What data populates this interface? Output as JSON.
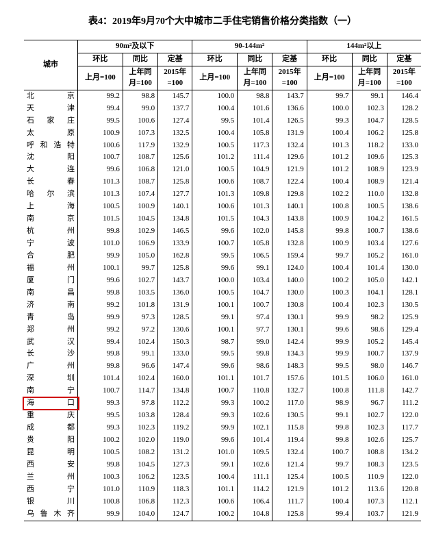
{
  "title": "表4：2019年9月70个大中城市二手住宅销售价格分类指数（一）",
  "header": {
    "city": "城市",
    "groups": [
      "90m²及以下",
      "90-144m²",
      "144m²以上"
    ],
    "sub": {
      "mom": "环比",
      "yoy": "同比",
      "base": "定基",
      "mom_s": "上月=100",
      "yoy_s": "上年同\n月=100",
      "base_s": "2015年\n=100"
    }
  },
  "style": {
    "highlight_color": "#d00000",
    "highlight_row_index": 27
  },
  "rows": [
    {
      "c": "北　　京",
      "v": [
        99.2,
        98.8,
        145.7,
        100.0,
        98.8,
        143.7,
        99.7,
        99.1,
        146.4
      ]
    },
    {
      "c": "天　　津",
      "v": [
        99.4,
        99.0,
        137.7,
        100.4,
        101.6,
        136.6,
        100.0,
        102.3,
        128.2
      ]
    },
    {
      "c": "石 家 庄",
      "v": [
        99.5,
        100.6,
        127.4,
        99.5,
        101.4,
        126.5,
        99.3,
        104.7,
        128.5
      ]
    },
    {
      "c": "太　　原",
      "v": [
        100.9,
        107.3,
        132.5,
        100.4,
        105.8,
        131.9,
        100.4,
        106.2,
        125.8
      ]
    },
    {
      "c": "呼和浩特",
      "v": [
        100.6,
        117.9,
        132.9,
        100.5,
        117.3,
        132.4,
        101.3,
        118.2,
        133.0
      ]
    },
    {
      "c": "沈　　阳",
      "v": [
        100.7,
        108.7,
        125.6,
        101.2,
        111.4,
        129.6,
        101.2,
        109.6,
        125.3
      ]
    },
    {
      "c": "大　　连",
      "v": [
        99.6,
        106.8,
        121.0,
        100.5,
        104.9,
        121.9,
        101.2,
        108.9,
        123.9
      ]
    },
    {
      "c": "长　　春",
      "v": [
        101.3,
        108.7,
        125.8,
        100.6,
        108.7,
        122.4,
        100.4,
        108.9,
        121.4
      ]
    },
    {
      "c": "哈 尔 滨",
      "v": [
        101.3,
        107.4,
        127.7,
        101.3,
        109.8,
        129.8,
        102.2,
        110.0,
        132.8
      ]
    },
    {
      "c": "上　　海",
      "v": [
        100.5,
        100.9,
        140.1,
        100.6,
        101.3,
        140.1,
        100.8,
        100.5,
        138.6
      ]
    },
    {
      "c": "南　　京",
      "v": [
        101.5,
        104.5,
        134.8,
        101.5,
        104.3,
        143.8,
        100.9,
        104.2,
        161.5
      ]
    },
    {
      "c": "杭　　州",
      "v": [
        99.8,
        102.9,
        146.5,
        99.6,
        102.0,
        145.8,
        99.8,
        100.7,
        138.6
      ]
    },
    {
      "c": "宁　　波",
      "v": [
        101.0,
        106.9,
        133.9,
        100.7,
        105.8,
        132.8,
        100.9,
        103.4,
        127.6
      ]
    },
    {
      "c": "合　　肥",
      "v": [
        99.9,
        105.0,
        162.8,
        99.5,
        106.5,
        159.4,
        99.7,
        105.2,
        161.0
      ]
    },
    {
      "c": "福　　州",
      "v": [
        100.1,
        99.7,
        125.8,
        99.6,
        99.1,
        124.0,
        100.4,
        101.4,
        130.0
      ]
    },
    {
      "c": "厦　　门",
      "v": [
        99.6,
        102.7,
        143.7,
        100.0,
        103.4,
        140.0,
        100.2,
        105.0,
        142.1
      ]
    },
    {
      "c": "南　　昌",
      "v": [
        99.8,
        103.5,
        136.0,
        100.5,
        104.7,
        130.0,
        100.3,
        104.1,
        128.1
      ]
    },
    {
      "c": "济　　南",
      "v": [
        99.2,
        101.8,
        131.9,
        100.1,
        100.7,
        130.8,
        100.4,
        102.3,
        130.5
      ]
    },
    {
      "c": "青　　岛",
      "v": [
        99.9,
        97.3,
        128.5,
        99.1,
        97.4,
        130.1,
        99.9,
        98.2,
        125.9
      ]
    },
    {
      "c": "郑　　州",
      "v": [
        99.2,
        97.2,
        130.6,
        100.1,
        97.7,
        130.1,
        99.6,
        98.6,
        129.4
      ]
    },
    {
      "c": "武　　汉",
      "v": [
        99.4,
        102.4,
        150.3,
        98.7,
        99.0,
        142.4,
        99.9,
        105.2,
        145.4
      ]
    },
    {
      "c": "长　　沙",
      "v": [
        99.8,
        99.1,
        133.0,
        99.5,
        99.8,
        134.3,
        99.9,
        100.7,
        137.9
      ]
    },
    {
      "c": "广　　州",
      "v": [
        99.8,
        96.6,
        147.4,
        99.6,
        98.6,
        148.3,
        99.5,
        98.0,
        146.7
      ]
    },
    {
      "c": "深　　圳",
      "v": [
        101.4,
        102.4,
        160.0,
        101.1,
        101.7,
        157.6,
        101.5,
        106.0,
        161.0
      ]
    },
    {
      "c": "南　　宁",
      "v": [
        100.7,
        114.7,
        134.8,
        100.7,
        110.8,
        132.7,
        100.8,
        111.8,
        142.7
      ]
    },
    {
      "c": "海　　口",
      "v": [
        99.3,
        97.8,
        112.2,
        99.3,
        100.2,
        117.0,
        98.9,
        96.7,
        111.2
      ]
    },
    {
      "c": "重　　庆",
      "v": [
        99.5,
        103.8,
        128.4,
        99.3,
        102.6,
        130.5,
        99.1,
        102.7,
        122.0
      ]
    },
    {
      "c": "成　　都",
      "v": [
        99.3,
        102.3,
        119.2,
        99.9,
        102.1,
        115.8,
        99.8,
        102.3,
        117.7
      ]
    },
    {
      "c": "贵　　阳",
      "v": [
        100.2,
        102.0,
        119.0,
        99.6,
        101.4,
        119.4,
        99.8,
        102.6,
        125.7
      ]
    },
    {
      "c": "昆　　明",
      "v": [
        100.5,
        108.2,
        131.2,
        101.0,
        109.5,
        132.4,
        100.7,
        108.8,
        134.2
      ]
    },
    {
      "c": "西　　安",
      "v": [
        99.8,
        104.5,
        127.3,
        99.1,
        102.6,
        121.4,
        99.7,
        108.3,
        123.5
      ]
    },
    {
      "c": "兰　　州",
      "v": [
        100.3,
        106.2,
        123.5,
        100.4,
        111.1,
        125.4,
        100.5,
        110.9,
        122.0
      ]
    },
    {
      "c": "西　　宁",
      "v": [
        101.0,
        110.9,
        118.3,
        101.1,
        114.2,
        121.9,
        101.2,
        113.6,
        120.8
      ]
    },
    {
      "c": "银　　川",
      "v": [
        100.8,
        106.8,
        112.3,
        100.6,
        106.4,
        111.7,
        100.4,
        107.3,
        112.1
      ]
    },
    {
      "c": "乌鲁木齐",
      "v": [
        99.9,
        104.0,
        124.7,
        100.2,
        104.8,
        125.8,
        99.4,
        103.7,
        121.9
      ]
    }
  ]
}
